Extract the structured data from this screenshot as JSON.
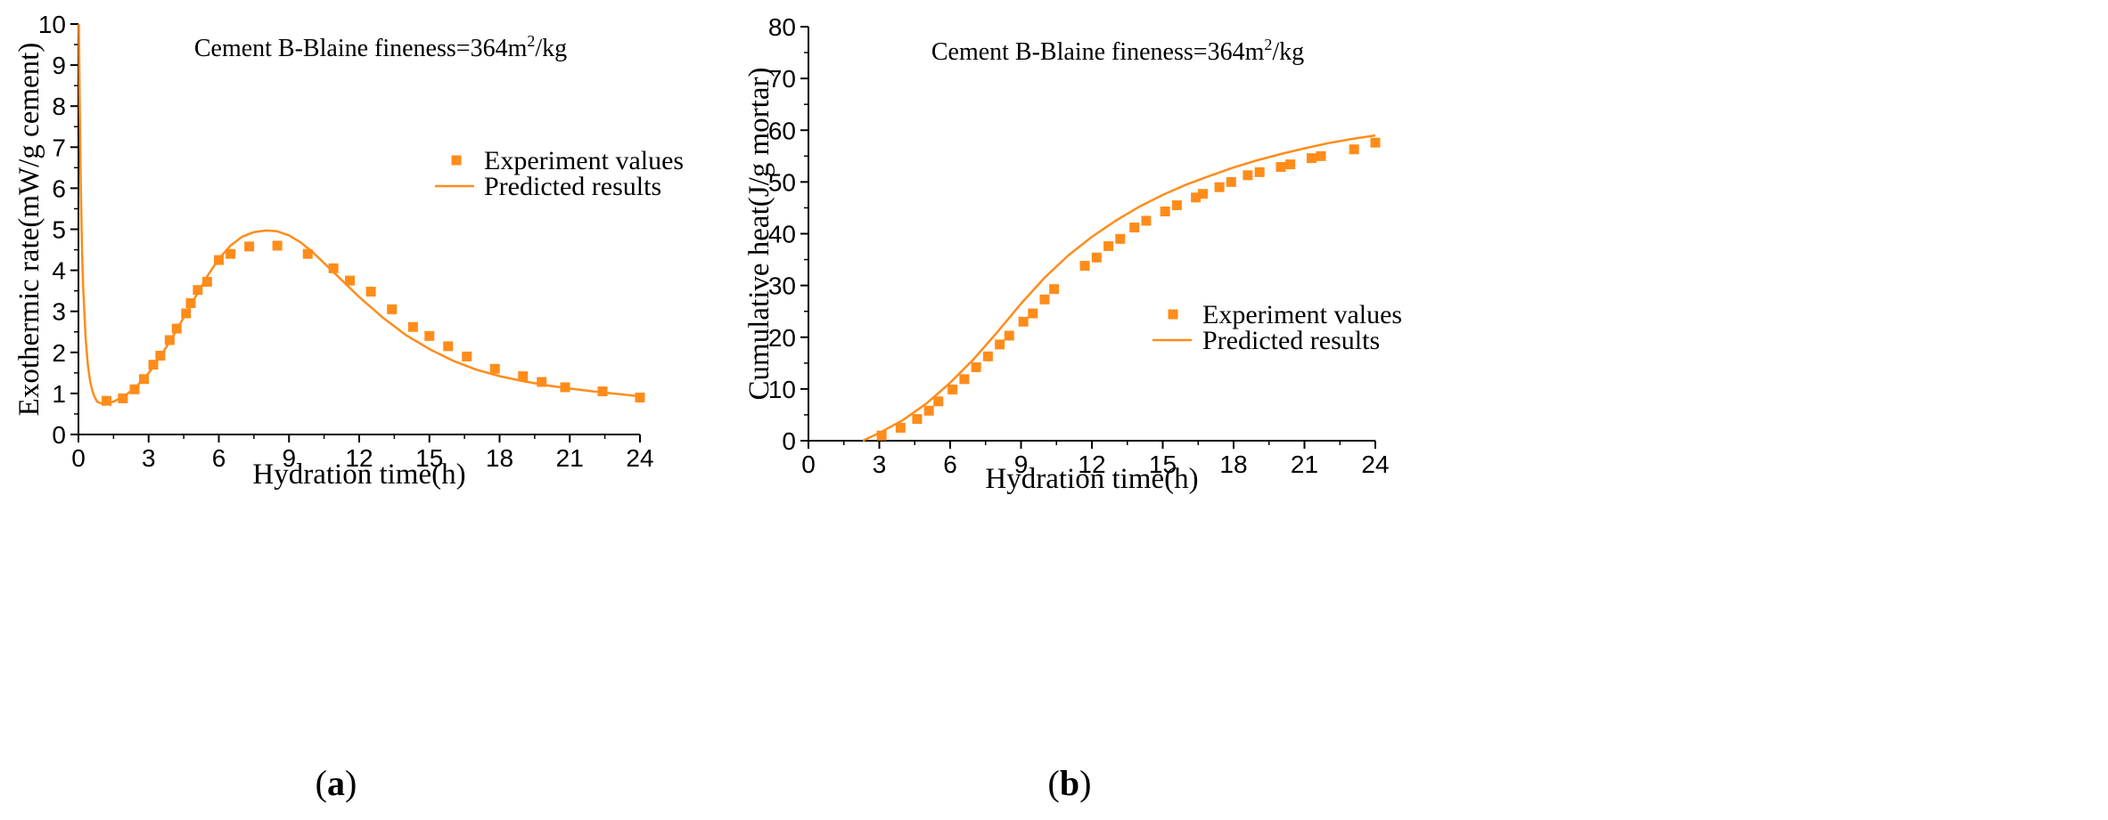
{
  "colors": {
    "series": "#ff8c1a",
    "axis": "#000000"
  },
  "chart_data": [
    {
      "type": "line+scatter",
      "panel_label": {
        "open": "(",
        "letter": "a",
        "close": ")"
      },
      "title": {
        "main": "Cement B-Blaine fineness=364m",
        "sup": "2",
        "unit": "/kg"
      },
      "xlabel": "Hydration time(h)",
      "ylabel": "Exothermic rate(mW/g cement)",
      "xlim": [
        0,
        24
      ],
      "ylim": [
        0,
        10
      ],
      "xticks": [
        0,
        3,
        6,
        9,
        12,
        15,
        18,
        21,
        24
      ],
      "yticks": [
        0,
        1,
        2,
        3,
        4,
        5,
        6,
        7,
        8,
        9,
        10
      ],
      "legend": {
        "position": "center-right",
        "entries": [
          "Experiment values",
          "Predicted results"
        ]
      },
      "series": [
        {
          "name": "Experiment values",
          "kind": "scatter",
          "x": [
            1.2,
            1.9,
            2.4,
            2.8,
            3.2,
            3.5,
            3.9,
            4.2,
            4.6,
            4.8,
            5.1,
            5.5,
            6.0,
            6.5,
            7.3,
            8.5,
            9.8,
            10.9,
            11.6,
            12.5,
            13.4,
            14.3,
            15.0,
            15.8,
            16.6,
            17.8,
            19.0,
            19.8,
            20.8,
            22.4,
            24.0
          ],
          "y": [
            0.82,
            0.88,
            1.1,
            1.35,
            1.7,
            1.92,
            2.3,
            2.58,
            2.95,
            3.2,
            3.52,
            3.72,
            4.25,
            4.4,
            4.58,
            4.6,
            4.4,
            4.05,
            3.75,
            3.48,
            3.05,
            2.62,
            2.4,
            2.15,
            1.9,
            1.6,
            1.42,
            1.28,
            1.15,
            1.05,
            0.9
          ]
        },
        {
          "name": "Predicted results",
          "kind": "line",
          "x": [
            0.02,
            0.05,
            0.1,
            0.15,
            0.2,
            0.3,
            0.4,
            0.5,
            0.6,
            0.7,
            0.8,
            1.0,
            1.2,
            1.5,
            2.0,
            2.5,
            3.0,
            3.5,
            4.0,
            4.5,
            5.0,
            5.5,
            6.0,
            6.5,
            7.0,
            7.5,
            8.0,
            8.5,
            9.0,
            9.5,
            10.0,
            11.0,
            12.0,
            13.0,
            14.0,
            15.0,
            16.0,
            17.0,
            18.0,
            19.0,
            20.0,
            21.0,
            22.0,
            23.0,
            24.0
          ],
          "y": [
            10.0,
            8.3,
            6.1,
            4.6,
            3.6,
            2.4,
            1.7,
            1.3,
            1.05,
            0.9,
            0.8,
            0.75,
            0.76,
            0.8,
            0.95,
            1.18,
            1.5,
            1.9,
            2.35,
            2.85,
            3.35,
            3.85,
            4.28,
            4.6,
            4.82,
            4.93,
            4.97,
            4.95,
            4.85,
            4.68,
            4.45,
            3.9,
            3.35,
            2.85,
            2.42,
            2.08,
            1.8,
            1.58,
            1.42,
            1.3,
            1.2,
            1.12,
            1.05,
            0.99,
            0.93
          ]
        }
      ]
    },
    {
      "type": "line+scatter",
      "panel_label": {
        "open": "(",
        "letter": "b",
        "close": ")"
      },
      "title": {
        "main": "Cement B-Blaine fineness=364m",
        "sup": "2",
        "unit": "/kg"
      },
      "xlabel": "Hydration time(h)",
      "ylabel": "Cumulative heat(J/g mortar)",
      "xlim": [
        0,
        24
      ],
      "ylim": [
        0,
        80
      ],
      "xticks": [
        0,
        3,
        6,
        9,
        12,
        15,
        18,
        21,
        24
      ],
      "yticks": [
        0,
        10,
        20,
        30,
        40,
        50,
        60,
        70,
        80
      ],
      "legend": {
        "position": "center-right",
        "entries": [
          "Experiment values",
          "Predicted results"
        ]
      },
      "series": [
        {
          "name": "Experiment values",
          "kind": "scatter",
          "x": [
            3.1,
            3.9,
            4.6,
            5.1,
            5.5,
            6.1,
            6.6,
            7.1,
            7.6,
            8.1,
            8.5,
            9.1,
            9.5,
            10.0,
            10.4,
            11.7,
            12.2,
            12.7,
            13.2,
            13.8,
            14.3,
            15.1,
            15.6,
            16.4,
            16.7,
            17.4,
            17.9,
            18.6,
            19.1,
            20.0,
            20.4,
            21.3,
            21.7,
            23.1,
            24.0
          ],
          "y": [
            1.0,
            2.5,
            4.2,
            5.8,
            7.6,
            9.9,
            11.9,
            14.2,
            16.3,
            18.6,
            20.3,
            23.0,
            24.6,
            27.3,
            29.3,
            33.8,
            35.4,
            37.6,
            39.0,
            41.2,
            42.5,
            44.3,
            45.5,
            47.0,
            47.7,
            49.0,
            50.0,
            51.3,
            51.9,
            52.9,
            53.4,
            54.6,
            55.0,
            56.3,
            57.6
          ]
        },
        {
          "name": "Predicted results",
          "kind": "line",
          "x": [
            2.3,
            3.0,
            4.0,
            5.0,
            6.0,
            7.0,
            8.0,
            9.0,
            10.0,
            11.0,
            12.0,
            13.0,
            14.0,
            15.0,
            16.0,
            17.0,
            18.0,
            19.0,
            20.0,
            21.0,
            22.0,
            23.0,
            24.0
          ],
          "y": [
            0.0,
            1.5,
            4.0,
            7.2,
            11.2,
            15.8,
            21.0,
            26.5,
            31.5,
            35.8,
            39.4,
            42.5,
            45.2,
            47.5,
            49.5,
            51.2,
            52.8,
            54.2,
            55.4,
            56.5,
            57.5,
            58.3,
            59.0
          ]
        }
      ]
    }
  ]
}
